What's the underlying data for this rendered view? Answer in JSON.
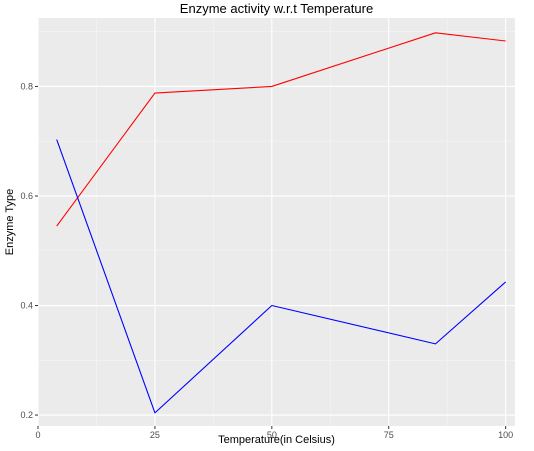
{
  "chart_data": {
    "type": "line",
    "title": "Enzyme activity w.r.t Temperature",
    "xlabel": "Temperature(in Celsius)",
    "ylabel": "Enzyme Type",
    "xlim": [
      0,
      102
    ],
    "ylim": [
      0.18,
      0.925
    ],
    "x_ticks": [
      0,
      25,
      50,
      75,
      100
    ],
    "y_ticks": [
      0.2,
      0.4,
      0.6,
      0.8
    ],
    "x_tick_labels": [
      "0",
      "25",
      "50",
      "75",
      "100"
    ],
    "y_tick_labels": [
      "0.2",
      "0.4",
      "0.6",
      "0.8"
    ],
    "grid": true,
    "background": "#ebebeb",
    "series": [
      {
        "color": "#ff0000",
        "x": [
          4,
          25,
          50,
          85,
          100
        ],
        "y": [
          0.545,
          0.788,
          0.8,
          0.898,
          0.883
        ]
      },
      {
        "color": "#0000ff",
        "x": [
          4,
          25,
          50,
          85,
          100
        ],
        "y": [
          0.703,
          0.204,
          0.4,
          0.33,
          0.443
        ]
      }
    ]
  }
}
